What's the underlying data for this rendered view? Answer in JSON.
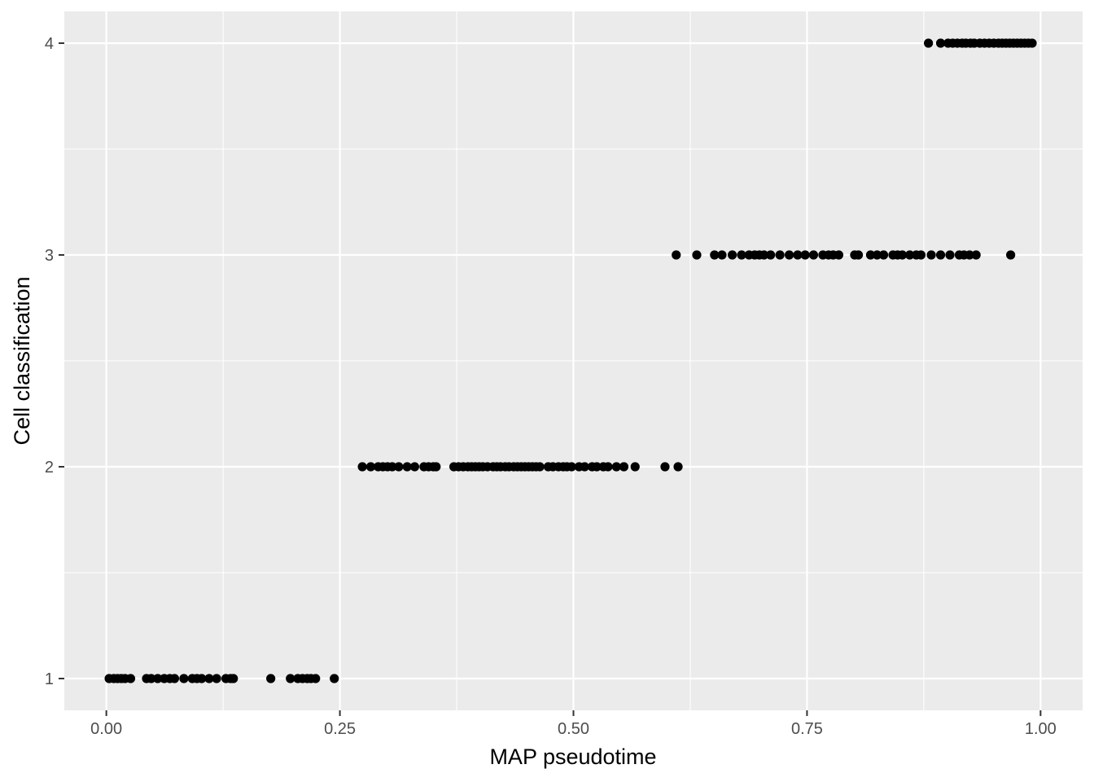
{
  "chart_data": {
    "type": "scatter",
    "xlabel": "MAP pseudotime",
    "ylabel": "Cell classification",
    "xlim": [
      -0.045,
      1.045
    ],
    "ylim": [
      0.85,
      4.15
    ],
    "x_ticks": [
      0.0,
      0.25,
      0.5,
      0.75,
      1.0
    ],
    "x_tick_labels": [
      "0.00",
      "0.25",
      "0.50",
      "0.75",
      "1.00"
    ],
    "y_ticks": [
      1,
      2,
      3,
      4
    ],
    "y_tick_labels": [
      "1",
      "2",
      "3",
      "4"
    ],
    "grid": true,
    "colors": {
      "panel": "#ebebeb",
      "grid": "#ffffff",
      "point": "#000000"
    },
    "series": [
      {
        "y": 1,
        "x": [
          0.003,
          0.008,
          0.012,
          0.016,
          0.02,
          0.026,
          0.043,
          0.048,
          0.055,
          0.062,
          0.068,
          0.073,
          0.083,
          0.092,
          0.097,
          0.102,
          0.11,
          0.118,
          0.128,
          0.133,
          0.136,
          0.176,
          0.197,
          0.205,
          0.21,
          0.215,
          0.219,
          0.224,
          0.244
        ]
      },
      {
        "y": 2,
        "x": [
          0.274,
          0.283,
          0.291,
          0.296,
          0.301,
          0.306,
          0.313,
          0.322,
          0.33,
          0.34,
          0.345,
          0.35,
          0.353,
          0.372,
          0.377,
          0.382,
          0.387,
          0.391,
          0.395,
          0.399,
          0.403,
          0.408,
          0.414,
          0.418,
          0.422,
          0.427,
          0.431,
          0.436,
          0.44,
          0.444,
          0.448,
          0.452,
          0.456,
          0.46,
          0.464,
          0.473,
          0.478,
          0.484,
          0.489,
          0.493,
          0.498,
          0.506,
          0.512,
          0.52,
          0.525,
          0.532,
          0.537,
          0.546,
          0.554,
          0.566,
          0.598,
          0.612
        ]
      },
      {
        "y": 3,
        "x": [
          0.61,
          0.632,
          0.651,
          0.659,
          0.67,
          0.68,
          0.688,
          0.694,
          0.699,
          0.704,
          0.711,
          0.721,
          0.731,
          0.74,
          0.748,
          0.757,
          0.767,
          0.773,
          0.778,
          0.784,
          0.801,
          0.805,
          0.818,
          0.825,
          0.832,
          0.842,
          0.847,
          0.852,
          0.86,
          0.867,
          0.872,
          0.883,
          0.893,
          0.903,
          0.913,
          0.918,
          0.924,
          0.931,
          0.968
        ]
      },
      {
        "y": 4,
        "x": [
          0.88,
          0.893,
          0.901,
          0.906,
          0.911,
          0.916,
          0.92,
          0.925,
          0.929,
          0.935,
          0.94,
          0.945,
          0.95,
          0.955,
          0.959,
          0.963,
          0.967,
          0.971,
          0.975,
          0.979,
          0.983,
          0.987,
          0.991
        ]
      }
    ]
  }
}
